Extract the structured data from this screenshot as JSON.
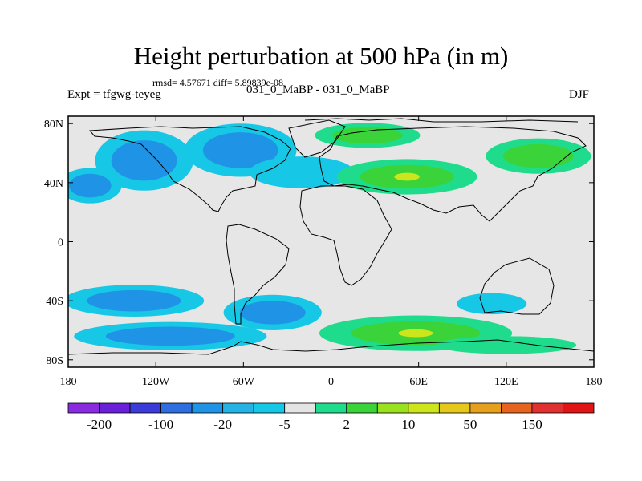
{
  "title": "Height perturbation at 500 hPa (in m)",
  "stats": "rmsd= 4.57671 diff= 5.89839e-08",
  "expt_label": "Expt = tfgwg-teyeg",
  "subtitle": "031_0_MaBP - 031_0_MaBP",
  "season": "DJF",
  "map": {
    "lat_labels": [
      {
        "lat": 80,
        "text": "80N"
      },
      {
        "lat": 40,
        "text": "40N"
      },
      {
        "lat": 0,
        "text": "0"
      },
      {
        "lat": -40,
        "text": "40S"
      },
      {
        "lat": -80,
        "text": "80S"
      }
    ],
    "lon_labels": [
      {
        "lon": -180,
        "text": "180"
      },
      {
        "lon": -120,
        "text": "120W"
      },
      {
        "lon": -60,
        "text": "60W"
      },
      {
        "lon": 0,
        "text": "0"
      },
      {
        "lon": 60,
        "text": "60E"
      },
      {
        "lon": 120,
        "text": "120E"
      },
      {
        "lon": 180,
        "text": "180"
      }
    ]
  },
  "colorbar": {
    "colors": [
      "#8a2be2",
      "#6a1fd8",
      "#3b3bd9",
      "#2f6ee0",
      "#1f94e6",
      "#25b3e6",
      "#17c8e6",
      "#e4e4e4",
      "#1fdc8c",
      "#3ad43a",
      "#9ae21e",
      "#cde61c",
      "#e6c81c",
      "#e6a01e",
      "#e6641e",
      "#e03030",
      "#e01414"
    ],
    "labels": [
      {
        "index": 1,
        "text": "-200"
      },
      {
        "index": 3,
        "text": "-100"
      },
      {
        "index": 5,
        "text": "-20"
      },
      {
        "index": 7,
        "text": "-5"
      },
      {
        "index": 9,
        "text": "2"
      },
      {
        "index": 11,
        "text": "10"
      },
      {
        "index": 13,
        "text": "50"
      },
      {
        "index": 15,
        "text": "150"
      }
    ]
  },
  "regions": [
    {
      "name": "na-pac-low",
      "lon": -128,
      "lat": 55,
      "rx": 28,
      "ry": 17,
      "levels": [
        -5,
        -20,
        -20
      ]
    },
    {
      "name": "pac-40n-low",
      "lon": -165,
      "lat": 38,
      "rx": 18,
      "ry": 10,
      "levels": [
        -5,
        -20
      ]
    },
    {
      "name": "na-high",
      "lon": -62,
      "lat": 62,
      "rx": 32,
      "ry": 15,
      "levels": [
        -5,
        -20,
        -20
      ]
    },
    {
      "name": "atl-low",
      "lon": -20,
      "lat": 47,
      "rx": 30,
      "ry": 9,
      "levels": [
        -5
      ]
    },
    {
      "name": "asia-pos",
      "lon": 52,
      "lat": 44,
      "rx": 40,
      "ry": 10,
      "levels": [
        2,
        10,
        10
      ]
    },
    {
      "name": "arctic-pos",
      "lon": 25,
      "lat": 72,
      "rx": 30,
      "ry": 7,
      "levels": [
        2,
        10
      ]
    },
    {
      "name": "e-asia-pos",
      "lon": 142,
      "lat": 58,
      "rx": 30,
      "ry": 10,
      "levels": [
        2,
        10
      ]
    },
    {
      "name": "sp-low",
      "lon": -135,
      "lat": -40,
      "rx": 40,
      "ry": 9,
      "levels": [
        -5,
        -20
      ]
    },
    {
      "name": "so-low-w",
      "lon": -110,
      "lat": -64,
      "rx": 55,
      "ry": 8,
      "levels": [
        -5,
        -20,
        -20
      ]
    },
    {
      "name": "sa-low",
      "lon": -40,
      "lat": -48,
      "rx": 28,
      "ry": 10,
      "levels": [
        -5,
        -20
      ]
    },
    {
      "name": "so-pos",
      "lon": 58,
      "lat": -62,
      "rx": 55,
      "ry": 10,
      "levels": [
        2,
        10,
        10
      ]
    },
    {
      "name": "so-pos-e",
      "lon": 120,
      "lat": -70,
      "rx": 40,
      "ry": 5,
      "levels": [
        2
      ]
    },
    {
      "name": "indian-neg",
      "lon": 110,
      "lat": -42,
      "rx": 20,
      "ry": 6,
      "levels": [
        -5
      ]
    }
  ]
}
